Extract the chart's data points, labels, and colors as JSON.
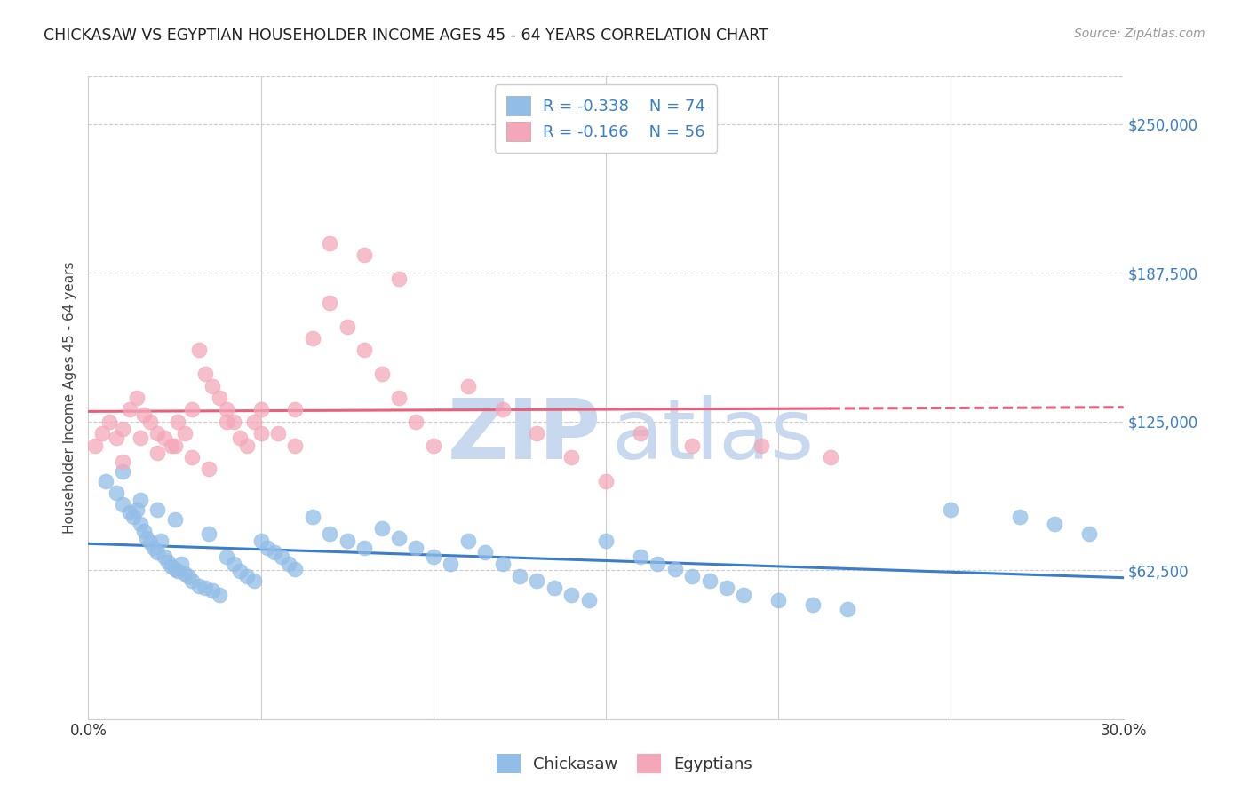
{
  "title": "CHICKASAW VS EGYPTIAN HOUSEHOLDER INCOME AGES 45 - 64 YEARS CORRELATION CHART",
  "source": "Source: ZipAtlas.com",
  "ylabel": "Householder Income Ages 45 - 64 years",
  "ytick_labels": [
    "$62,500",
    "$125,000",
    "$187,500",
    "$250,000"
  ],
  "ytick_values": [
    62500,
    125000,
    187500,
    250000
  ],
  "ymin": 0,
  "ymax": 270000,
  "xmin": 0.0,
  "xmax": 0.3,
  "legend_blue_R": "-0.338",
  "legend_blue_N": "74",
  "legend_pink_R": "-0.166",
  "legend_pink_N": "56",
  "legend_label_blue": "Chickasaw",
  "legend_label_pink": "Egyptians",
  "blue_color": "#92bde7",
  "pink_color": "#f4a7b9",
  "blue_line_color": "#3a7dc9",
  "pink_line_color": "#e8607a",
  "watermark_zip_color": "#c8d8ee",
  "watermark_atlas_color": "#c8d8ee",
  "background_color": "#ffffff",
  "blue_points_x": [
    0.005,
    0.008,
    0.01,
    0.012,
    0.013,
    0.014,
    0.015,
    0.016,
    0.017,
    0.018,
    0.019,
    0.02,
    0.021,
    0.022,
    0.023,
    0.024,
    0.025,
    0.026,
    0.027,
    0.028,
    0.029,
    0.03,
    0.032,
    0.034,
    0.035,
    0.036,
    0.038,
    0.04,
    0.042,
    0.044,
    0.046,
    0.048,
    0.05,
    0.052,
    0.054,
    0.056,
    0.058,
    0.06,
    0.065,
    0.07,
    0.075,
    0.08,
    0.085,
    0.09,
    0.095,
    0.1,
    0.105,
    0.11,
    0.115,
    0.12,
    0.125,
    0.13,
    0.135,
    0.14,
    0.145,
    0.15,
    0.16,
    0.165,
    0.17,
    0.175,
    0.18,
    0.185,
    0.19,
    0.2,
    0.21,
    0.22,
    0.25,
    0.27,
    0.28,
    0.29,
    0.01,
    0.015,
    0.02,
    0.025
  ],
  "blue_points_y": [
    100000,
    95000,
    90000,
    87000,
    85000,
    88000,
    82000,
    79000,
    76000,
    74000,
    72000,
    70000,
    75000,
    68000,
    66000,
    64000,
    63000,
    62000,
    65000,
    61000,
    60000,
    58000,
    56000,
    55000,
    78000,
    54000,
    52000,
    68000,
    65000,
    62000,
    60000,
    58000,
    75000,
    72000,
    70000,
    68000,
    65000,
    63000,
    85000,
    78000,
    75000,
    72000,
    80000,
    76000,
    72000,
    68000,
    65000,
    75000,
    70000,
    65000,
    60000,
    58000,
    55000,
    52000,
    50000,
    75000,
    68000,
    65000,
    63000,
    60000,
    58000,
    55000,
    52000,
    50000,
    48000,
    46000,
    88000,
    85000,
    82000,
    78000,
    104000,
    92000,
    88000,
    84000
  ],
  "pink_points_x": [
    0.002,
    0.004,
    0.006,
    0.008,
    0.01,
    0.012,
    0.014,
    0.016,
    0.018,
    0.02,
    0.022,
    0.024,
    0.026,
    0.028,
    0.03,
    0.032,
    0.034,
    0.036,
    0.038,
    0.04,
    0.042,
    0.044,
    0.046,
    0.048,
    0.05,
    0.055,
    0.06,
    0.065,
    0.07,
    0.075,
    0.08,
    0.085,
    0.09,
    0.095,
    0.1,
    0.11,
    0.12,
    0.13,
    0.14,
    0.15,
    0.16,
    0.175,
    0.195,
    0.215,
    0.01,
    0.015,
    0.02,
    0.025,
    0.03,
    0.035,
    0.04,
    0.05,
    0.06,
    0.07,
    0.08,
    0.09
  ],
  "pink_points_y": [
    115000,
    120000,
    125000,
    118000,
    122000,
    130000,
    135000,
    128000,
    125000,
    120000,
    118000,
    115000,
    125000,
    120000,
    130000,
    155000,
    145000,
    140000,
    135000,
    130000,
    125000,
    118000,
    115000,
    125000,
    130000,
    120000,
    130000,
    160000,
    175000,
    165000,
    155000,
    145000,
    135000,
    125000,
    115000,
    140000,
    130000,
    120000,
    110000,
    100000,
    120000,
    115000,
    115000,
    110000,
    108000,
    118000,
    112000,
    115000,
    110000,
    105000,
    125000,
    120000,
    115000,
    200000,
    195000,
    185000
  ]
}
